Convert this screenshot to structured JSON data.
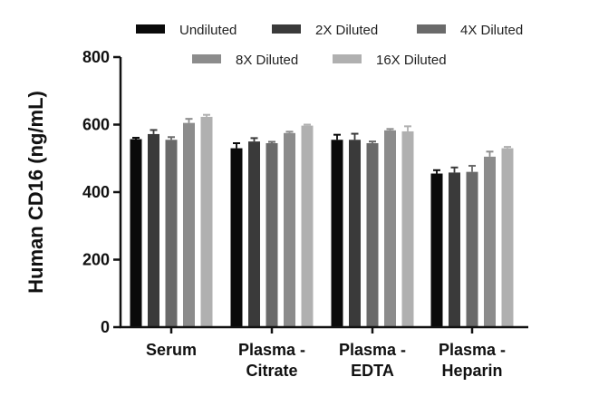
{
  "chart_data": {
    "type": "bar",
    "title": "",
    "xlabel": "",
    "ylabel": "Human CD16 (ng/mL)",
    "ylim": [
      0,
      800
    ],
    "yticks": [
      0,
      200,
      400,
      600,
      800
    ],
    "grid": false,
    "legend_position": "top",
    "categories": [
      [
        "Serum"
      ],
      [
        "Plasma -",
        "Citrate"
      ],
      [
        "Plasma -",
        "EDTA"
      ],
      [
        "Plasma -",
        "Heparin"
      ]
    ],
    "series": [
      {
        "name": "Undiluted",
        "color": "#0a0a0a",
        "values": [
          557,
          530,
          555,
          455
        ],
        "errors": [
          4,
          15,
          15,
          10
        ]
      },
      {
        "name": "2X Diluted",
        "color": "#3a3a3a",
        "values": [
          572,
          550,
          555,
          458
        ],
        "errors": [
          12,
          10,
          18,
          15
        ]
      },
      {
        "name": "4X Diluted",
        "color": "#6a6a6a",
        "values": [
          555,
          545,
          545,
          460
        ],
        "errors": [
          8,
          4,
          5,
          18
        ]
      },
      {
        "name": "8X Diluted",
        "color": "#8c8c8c",
        "values": [
          605,
          575,
          583,
          505
        ],
        "errors": [
          12,
          4,
          4,
          15
        ]
      },
      {
        "name": "16X Diluted",
        "color": "#b0b0b0",
        "values": [
          623,
          597,
          580,
          530
        ],
        "errors": [
          6,
          3,
          15,
          4
        ]
      }
    ]
  }
}
